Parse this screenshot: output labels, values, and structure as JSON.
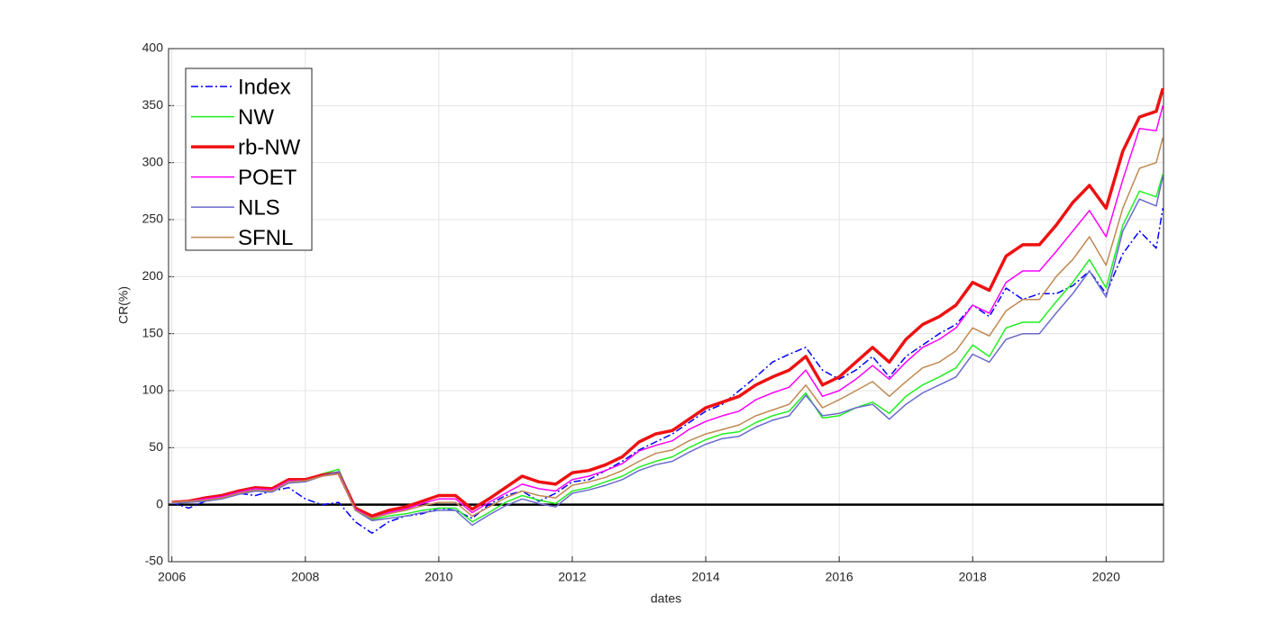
{
  "chart_data": {
    "type": "line",
    "xlabel": "dates",
    "ylabel": "CR(%)",
    "x": [
      2006,
      2006.25,
      2006.5,
      2006.75,
      2007,
      2007.25,
      2007.5,
      2007.75,
      2008,
      2008.25,
      2008.5,
      2008.75,
      2009,
      2009.25,
      2009.5,
      2009.75,
      2010,
      2010.25,
      2010.5,
      2010.75,
      2011,
      2011.25,
      2011.5,
      2011.75,
      2012,
      2012.25,
      2012.5,
      2012.75,
      2013,
      2013.25,
      2013.5,
      2013.75,
      2014,
      2014.25,
      2014.5,
      2014.75,
      2015,
      2015.25,
      2015.5,
      2015.75,
      2016,
      2016.25,
      2016.5,
      2016.75,
      2017,
      2017.25,
      2017.5,
      2017.75,
      2018,
      2018.25,
      2018.5,
      2018.75,
      2019,
      2019.25,
      2019.5,
      2019.75,
      2020,
      2020.25,
      2020.5,
      2020.75,
      2020.85
    ],
    "xlim": [
      2005.95,
      2020.86
    ],
    "xticks": [
      2006,
      2008,
      2010,
      2012,
      2014,
      2016,
      2018,
      2020
    ],
    "ylim": [
      -50,
      400
    ],
    "yticks": [
      -50,
      0,
      50,
      100,
      150,
      200,
      250,
      300,
      350,
      400
    ],
    "grid": true,
    "legend": "upper left",
    "series": [
      {
        "name": "Index",
        "color": "#0000ff",
        "width": 1.5,
        "dash": "dashdot",
        "values": [
          2,
          -3,
          3,
          6,
          10,
          8,
          12,
          15,
          5,
          0,
          2,
          -15,
          -25,
          -15,
          -10,
          -8,
          -3,
          -5,
          -12,
          0,
          8,
          12,
          3,
          10,
          20,
          22,
          30,
          38,
          48,
          55,
          62,
          72,
          82,
          88,
          100,
          112,
          125,
          132,
          138,
          118,
          110,
          118,
          130,
          112,
          130,
          140,
          150,
          158,
          175,
          165,
          190,
          180,
          185,
          185,
          192,
          205,
          185,
          220,
          240,
          225,
          260
        ]
      },
      {
        "name": "NW",
        "color": "#22ee22",
        "width": 1.5,
        "dash": "solid",
        "values": [
          2,
          3,
          4,
          6,
          10,
          13,
          12,
          20,
          21,
          27,
          31,
          -3,
          -13,
          -10,
          -8,
          -5,
          -3,
          -3,
          -15,
          -7,
          2,
          8,
          4,
          1,
          12,
          15,
          20,
          25,
          33,
          38,
          42,
          50,
          57,
          62,
          64,
          72,
          78,
          82,
          98,
          76,
          78,
          85,
          90,
          80,
          95,
          105,
          112,
          120,
          140,
          130,
          155,
          160,
          160,
          178,
          195,
          215,
          190,
          245,
          275,
          270,
          290
        ]
      },
      {
        "name": "rb-NW",
        "color": "#ee1111",
        "width": 3.5,
        "dash": "solid",
        "values": [
          2,
          3,
          6,
          8,
          12,
          15,
          14,
          22,
          22,
          26,
          28,
          -3,
          -10,
          -5,
          -2,
          3,
          8,
          8,
          -4,
          5,
          15,
          25,
          20,
          18,
          28,
          30,
          35,
          42,
          55,
          62,
          65,
          75,
          85,
          90,
          95,
          105,
          112,
          118,
          130,
          105,
          112,
          125,
          138,
          125,
          145,
          158,
          165,
          175,
          195,
          188,
          218,
          228,
          228,
          245,
          265,
          280,
          260,
          310,
          340,
          345,
          365
        ]
      },
      {
        "name": "POET",
        "color": "#ff00ff",
        "width": 1.5,
        "dash": "solid",
        "values": [
          2,
          3,
          5,
          7,
          11,
          14,
          13,
          21,
          21,
          25,
          27,
          -4,
          -12,
          -7,
          -4,
          1,
          5,
          5,
          -7,
          2,
          10,
          18,
          14,
          12,
          22,
          25,
          30,
          36,
          47,
          52,
          56,
          66,
          73,
          78,
          82,
          92,
          98,
          103,
          118,
          95,
          100,
          110,
          122,
          110,
          125,
          138,
          145,
          155,
          175,
          168,
          195,
          205,
          205,
          222,
          240,
          258,
          235,
          285,
          330,
          328,
          350
        ]
      },
      {
        "name": "NLS",
        "color": "#6a6acc",
        "width": 1.5,
        "dash": "solid",
        "values": [
          1,
          2,
          3,
          5,
          9,
          12,
          11,
          19,
          20,
          25,
          29,
          -5,
          -14,
          -12,
          -10,
          -7,
          -5,
          -5,
          -18,
          -9,
          -1,
          5,
          1,
          -2,
          10,
          13,
          17,
          22,
          30,
          35,
          38,
          46,
          53,
          58,
          60,
          68,
          74,
          78,
          96,
          78,
          80,
          85,
          88,
          75,
          88,
          98,
          105,
          112,
          132,
          125,
          145,
          150,
          150,
          168,
          185,
          205,
          182,
          240,
          268,
          262,
          288
        ]
      },
      {
        "name": "SFNL",
        "color": "#c08850",
        "width": 1.5,
        "dash": "solid",
        "values": [
          2,
          3,
          4,
          6,
          10,
          13,
          12,
          20,
          21,
          25,
          27,
          -5,
          -12,
          -8,
          -5,
          -1,
          2,
          2,
          -10,
          -2,
          6,
          12,
          8,
          6,
          17,
          20,
          24,
          30,
          38,
          45,
          48,
          56,
          62,
          66,
          70,
          78,
          83,
          88,
          105,
          85,
          92,
          100,
          108,
          95,
          108,
          120,
          125,
          135,
          155,
          148,
          170,
          180,
          180,
          200,
          215,
          235,
          210,
          260,
          295,
          300,
          322
        ]
      }
    ]
  }
}
